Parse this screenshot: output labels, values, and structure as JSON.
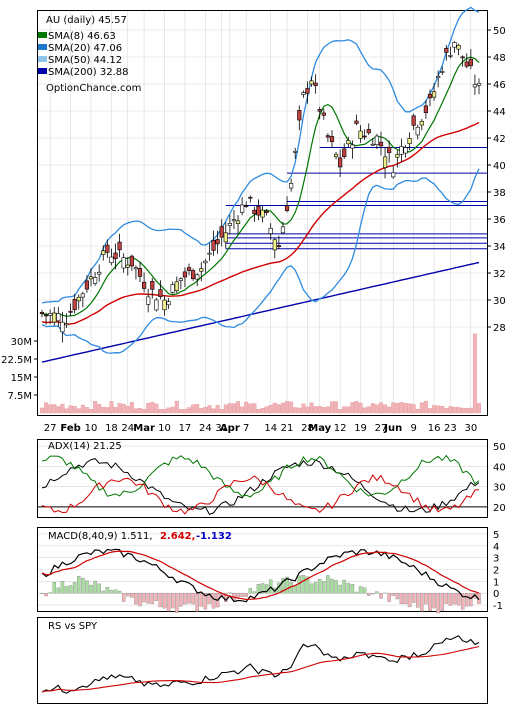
{
  "chart_data": [
    {
      "type": "candlestick",
      "title": "AU (daily) 45.57",
      "watermark": "OptionChance.com",
      "legend": [
        {
          "label": "SMA(8) 46.63",
          "color": "#007700"
        },
        {
          "label": "SMA(20) 47.06",
          "color": "#1f77d0"
        },
        {
          "label": "SMA(50) 44.12",
          "color": "#8fc3ea"
        },
        {
          "label": "SMA(200) 32.88",
          "color": "#0000aa"
        }
      ],
      "legend_placement": "top-left",
      "ylim": [
        27,
        51
      ],
      "yticks": [
        28,
        30,
        32,
        34,
        36,
        38,
        40,
        42,
        44,
        46,
        48,
        50
      ],
      "horizontal_levels": [
        41.3,
        39.4,
        37.3,
        37.0,
        34.9,
        34.6,
        34.2,
        33.8
      ],
      "volume_ticks": [
        "7.5M",
        "15M",
        "22.5M",
        "30M"
      ],
      "volume_max": 36,
      "volume_color": "#f2b3b8",
      "x_labels": [
        "27",
        "Feb",
        "10",
        "18",
        "24",
        "Mar",
        "10",
        "17",
        "24",
        "31",
        "Apr",
        "7",
        "14",
        "21",
        "28",
        "May",
        "12",
        "19",
        "27",
        "Jun",
        "9",
        "16",
        "23",
        "30"
      ],
      "colors": {
        "up": "#f0f08c",
        "down": "#c04040",
        "neutral": "#ffffff",
        "grid": "#d8d8d8",
        "sma200": "#0000aa",
        "sma50": "#2f8be0",
        "sma20": "#2f8be0",
        "sma8": "#007700",
        "red": "#d00000"
      }
    },
    {
      "type": "line",
      "title": "ADX(14) 21.25",
      "ylim": [
        15,
        53
      ],
      "yticks": [
        20,
        30,
        40,
        50
      ],
      "series": [
        {
          "color": "#000000"
        },
        {
          "color": "#007700"
        },
        {
          "color": "#d00000"
        }
      ],
      "reference": 20
    },
    {
      "type": "line",
      "title": "MACD(8,40,9) 1.511,",
      "title_extra": [
        "2.642,",
        "-1.132"
      ],
      "title_extra_colors": [
        "#d00000",
        "#0000cc"
      ],
      "ylim": [
        -1.5,
        5.5
      ],
      "yticks": [
        -1,
        0,
        1,
        2,
        3,
        4,
        5
      ],
      "series": [
        {
          "color": "#000000"
        },
        {
          "color": "#d00000"
        }
      ],
      "histogram_colors": {
        "up": "#a8dca0",
        "down": "#f2b3b8"
      }
    },
    {
      "type": "line",
      "title": "RS vs SPY",
      "series": [
        {
          "color": "#000000"
        },
        {
          "color": "#d00000"
        }
      ]
    }
  ]
}
